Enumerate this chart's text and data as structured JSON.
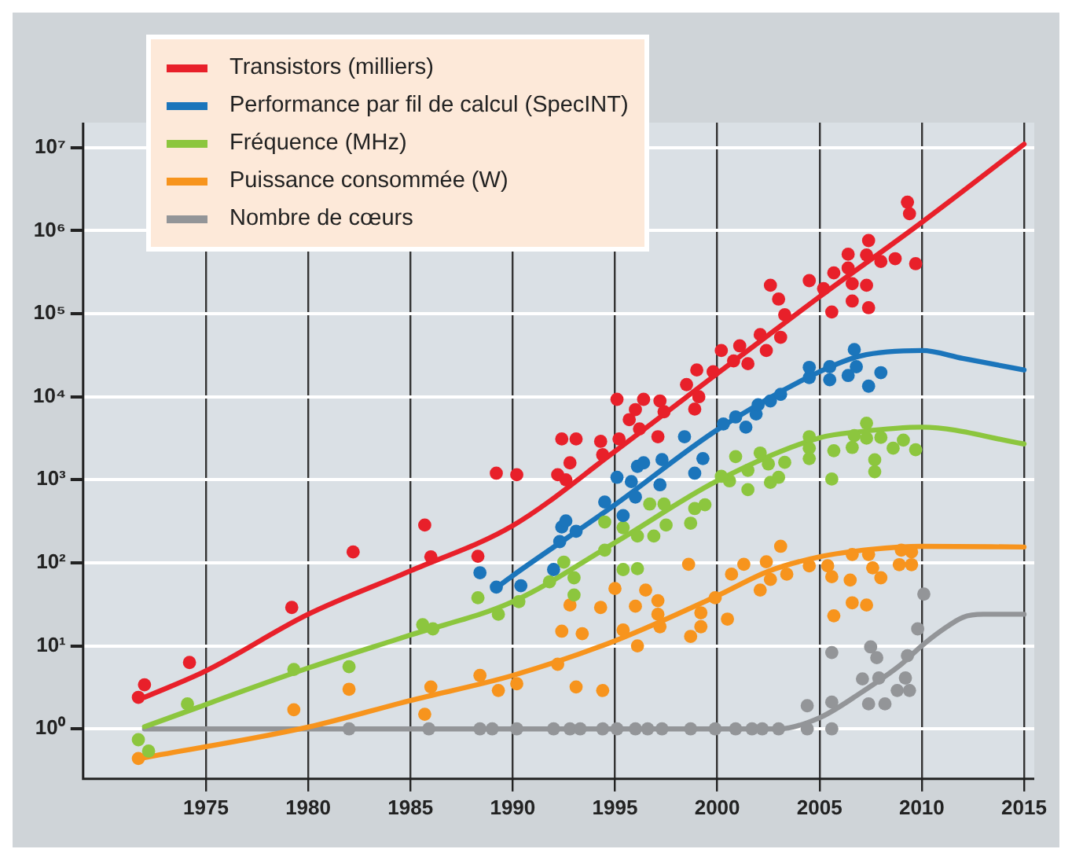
{
  "chart_data": {
    "type": "scatter",
    "legend": "top left",
    "grid": true,
    "log": "y",
    "xlim": [
      1969,
      2015.5
    ],
    "xticks": [
      1975,
      1980,
      1985,
      1990,
      1995,
      2000,
      2005,
      2010,
      2015
    ],
    "ylim": [
      0.25,
      20000000
    ],
    "yticks": [
      {
        "value": 1,
        "label": "10⁰"
      },
      {
        "value": 10,
        "label": "10¹"
      },
      {
        "value": 100,
        "label": "10²"
      },
      {
        "value": 1000,
        "label": "10³"
      },
      {
        "value": 10000,
        "label": "10⁴"
      },
      {
        "value": 100000,
        "label": "10⁵"
      },
      {
        "value": 1000000,
        "label": "10⁶"
      },
      {
        "value": 10000000,
        "label": "10⁷"
      }
    ],
    "series": [
      {
        "marker": "circle",
        "color": "#e8202a",
        "x": [
          1971.7,
          1972.0,
          1974.2,
          1979.2,
          1982.2,
          1985.7,
          1986.0,
          1988.3,
          1989.2,
          1990.2,
          1992.2,
          1992.6,
          1992.4,
          1993.1,
          1992.8,
          1994.3,
          1994.4,
          1995.2,
          1995.1,
          1995.7,
          1996.0,
          1996.4,
          1996.2,
          1997.1,
          1997.2,
          1997.4,
          1998.5,
          1999.0,
          1998.9,
          1999.1,
          1999.8,
          2000.2,
          2000.8,
          2001.1,
          2001.5,
          2002.1,
          2002.4,
          2003.1,
          2003.3,
          2003.0,
          2002.6,
          2004.5,
          2005.2,
          2005.6,
          2005.7,
          2006.4,
          2006.4,
          2006.6,
          2006.6,
          2007.3,
          2007.4,
          2007.3,
          2007.4,
          2008.0,
          2008.7,
          2009.3,
          2009.4,
          2009.7
        ],
        "values": [
          2.4,
          3.4,
          6.3,
          29,
          135,
          285,
          118,
          120,
          1200,
          1150,
          1150,
          1000,
          3100,
          3100,
          1600,
          2900,
          2000,
          3100,
          9300,
          5300,
          7000,
          9300,
          4100,
          3300,
          8900,
          6600,
          14000,
          21000,
          7100,
          10000,
          20000,
          36000,
          27000,
          41000,
          25000,
          56000,
          36000,
          52000,
          97000,
          150000,
          220000,
          250000,
          200000,
          105000,
          310000,
          520000,
          355000,
          230000,
          142000,
          220000,
          118000,
          510000,
          760000,
          425000,
          460000,
          2200000,
          1600000,
          400000
        ]
      },
      {
        "marker": "circle",
        "color": "#1b75bb",
        "x": [
          1988.4,
          1989.2,
          1990.4,
          1992.0,
          1992.4,
          1992.6,
          1993.1,
          1992.3,
          1994.5,
          1995.4,
          1996.0,
          1995.1,
          1995.8,
          1996.1,
          1996.4,
          1997.2,
          1997.3,
          1998.4,
          1998.9,
          1999.3,
          2000.3,
          2000.9,
          2001.4,
          2001.9,
          2002.0,
          2002.6,
          2003.1,
          2004.5,
          2004.5,
          2005.5,
          2005.5,
          2006.4,
          2006.7,
          2006.8,
          2007.4,
          2008.0
        ],
        "values": [
          76,
          51,
          53,
          83,
          270,
          320,
          240,
          180,
          540,
          370,
          620,
          1070,
          950,
          1450,
          1600,
          870,
          1750,
          3300,
          1200,
          1800,
          4700,
          5700,
          4300,
          6200,
          8000,
          8900,
          10700,
          17000,
          22600,
          16000,
          23000,
          18000,
          37000,
          23000,
          13400,
          19500
        ]
      },
      {
        "marker": "circle",
        "color": "#8cc63e",
        "x": [
          1971.7,
          1972.2,
          1974.1,
          1979.3,
          1982.0,
          1985.6,
          1986.1,
          1988.3,
          1989.3,
          1990.3,
          1991.8,
          1992.5,
          1993.0,
          1993.0,
          1994.5,
          1994.5,
          1995.4,
          1995.4,
          1996.1,
          1996.1,
          1996.7,
          1997.4,
          1997.5,
          1996.9,
          1998.7,
          1998.9,
          1999.4,
          2000.6,
          2001.5,
          2000.2,
          2000.9,
          2001.5,
          2002.1,
          2002.5,
          2002.6,
          2003.0,
          2003.3,
          2004.5,
          2004.5,
          2004.5,
          2005.6,
          2005.7,
          2006.6,
          2006.7,
          2007.3,
          2007.3,
          2007.7,
          2007.7,
          2008.0,
          2008.6,
          2009.1,
          2009.7
        ],
        "values": [
          0.74,
          0.54,
          2.0,
          5.2,
          5.6,
          18,
          16,
          38,
          24,
          34,
          59,
          102,
          66,
          41,
          142,
          310,
          265,
          83,
          85,
          210,
          510,
          510,
          285,
          210,
          300,
          450,
          500,
          970,
          760,
          1100,
          1900,
          1300,
          2100,
          1550,
          930,
          1070,
          1620,
          3300,
          2400,
          1800,
          1020,
          2240,
          2450,
          3400,
          4800,
          3170,
          1740,
          1250,
          3240,
          2400,
          3000,
          2300
        ]
      },
      {
        "marker": "circle",
        "color": "#f7941d",
        "x": [
          1971.7,
          1979.3,
          1982.0,
          1985.7,
          1986.0,
          1988.4,
          1989.3,
          1990.2,
          1992.2,
          1992.4,
          1992.8,
          1993.4,
          1993.1,
          1994.4,
          1994.3,
          1995.0,
          1995.4,
          1996.1,
          1996.0,
          1996.5,
          1997.1,
          1997.1,
          1997.2,
          1998.6,
          1998.7,
          1999.2,
          1999.2,
          1999.9,
          2000.5,
          2000.7,
          2001.3,
          2002.1,
          2002.4,
          2002.6,
          2003.1,
          2003.4,
          2004.5,
          2005.4,
          2005.6,
          2005.7,
          2006.5,
          2006.6,
          2007.3,
          2006.6,
          2007.4,
          2007.6,
          2008.0,
          2008.9,
          2009.0,
          2009.5,
          2009.5
        ],
        "values": [
          0.44,
          1.7,
          3.0,
          1.5,
          3.2,
          4.4,
          2.9,
          3.5,
          6.0,
          15,
          31,
          14,
          3.2,
          2.9,
          29,
          49,
          15.5,
          10,
          30,
          47,
          35,
          24,
          17,
          96,
          13,
          17,
          25,
          38,
          21,
          73,
          96,
          47,
          103,
          63,
          158,
          73,
          92,
          92,
          68,
          23,
          62,
          33,
          31,
          126,
          126,
          87,
          66,
          95,
          142,
          95,
          135
        ]
      },
      {
        "marker": "circle",
        "color": "#939598",
        "x": [
          1982.0,
          1985.9,
          1988.4,
          1989.0,
          1990.2,
          1992.0,
          1992.8,
          1993.3,
          1994.4,
          1995.1,
          1996.0,
          1996.6,
          1997.3,
          1998.7,
          1999.9,
          2000.9,
          2001.7,
          2002.2,
          2003.0,
          2004.4,
          2005.6,
          2004.4,
          2005.6,
          2005.6,
          2007.1,
          2007.4,
          2007.5,
          2007.8,
          2007.9,
          2008.2,
          2008.8,
          2009.2,
          2009.4,
          2009.3,
          2009.8,
          2010.1
        ],
        "values": [
          1,
          1,
          1,
          1,
          1,
          1,
          1,
          1,
          1,
          1,
          1,
          1,
          1,
          1,
          1,
          1,
          1,
          1,
          1,
          1,
          1,
          1.9,
          2.1,
          8.3,
          4,
          2,
          9.7,
          7.2,
          4.1,
          2.0,
          2.9,
          4.1,
          2.9,
          7.6,
          16,
          42
        ]
      },
      {
        "type": "line",
        "marker": "none",
        "name": "Transistors (milliers)",
        "color": "#e8202a",
        "x": [
          1972,
          1975,
          1980,
          1985,
          1990,
          1995,
          2000,
          2005,
          2010,
          2015
        ],
        "values": [
          2.4,
          5,
          24,
          80,
          280,
          2200,
          19000,
          160000,
          1260000,
          11000000
        ]
      },
      {
        "type": "line",
        "marker": "none",
        "name": "Performance par fil de calcul (SpecINT)",
        "color": "#1b75bb",
        "x": [
          1989.2,
          1990,
          1995,
          2000,
          2005,
          2007,
          2010,
          2012,
          2015
        ],
        "values": [
          50,
          70,
          500,
          4000,
          20000,
          31000,
          36000,
          29000,
          21000
        ]
      },
      {
        "type": "line",
        "marker": "none",
        "name": "Fréquence (MHz)",
        "color": "#8cc63e",
        "x": [
          1972,
          1980,
          1985,
          1990,
          1995,
          2000,
          2005,
          2007,
          2010,
          2015
        ],
        "values": [
          1.06,
          5.4,
          13.5,
          34,
          175,
          970,
          3200,
          3800,
          4300,
          2700
        ]
      },
      {
        "type": "line",
        "marker": "none",
        "name": "Puissance consommée (W)",
        "color": "#f7941d",
        "x": [
          1972,
          1980,
          1985,
          1990,
          1995,
          2000,
          2002.5,
          2005,
          2007.5,
          2010,
          2015
        ],
        "values": [
          0.45,
          1.05,
          2.2,
          4.4,
          11.5,
          40,
          79,
          118,
          145,
          158,
          155
        ]
      },
      {
        "type": "line",
        "marker": "none",
        "name": "Nombre de cœurs",
        "color": "#939598",
        "x": [
          1972,
          2003,
          2005,
          2007,
          2009,
          2010,
          2011,
          2012,
          2013,
          2015
        ],
        "values": [
          1,
          1,
          1.36,
          2.7,
          6,
          10,
          15.5,
          22,
          24,
          24
        ]
      }
    ]
  }
}
